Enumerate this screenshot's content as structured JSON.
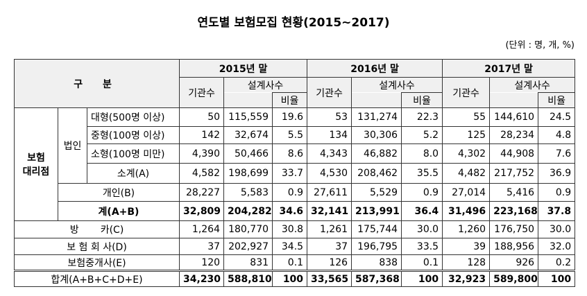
{
  "title": "연도별 보험모집 현황(2015~2017)",
  "unit": "(단위 : 명, 개, %)",
  "table": {
    "header": {
      "category": "구 분",
      "years": [
        {
          "year": "2015년 말",
          "institutions": "기관수",
          "planners": "설계사수",
          "ratio": "비율"
        },
        {
          "year": "2016년 말",
          "institutions": "기관수",
          "planners": "설계사수",
          "ratio": "비율"
        },
        {
          "year": "2017년 말",
          "institutions": "기관수",
          "planners": "설계사수",
          "ratio": "비율"
        }
      ]
    },
    "group_label": [
      "보험",
      "대리점"
    ],
    "corporate_label": "법인",
    "rows": [
      {
        "label": "대형(500명 이상)",
        "values": [
          "50",
          "115,559",
          "19.6",
          "53",
          "131,274",
          "22.3",
          "55",
          "144,610",
          "24.5"
        ]
      },
      {
        "label": "중형(100명 이상)",
        "values": [
          "142",
          "32,674",
          "5.5",
          "134",
          "30,306",
          "5.2",
          "125",
          "28,234",
          "4.8"
        ]
      },
      {
        "label": "소형(100명 미만)",
        "values": [
          "4,390",
          "50,466",
          "8.6",
          "4,343",
          "46,882",
          "8.0",
          "4,302",
          "44,908",
          "7.6"
        ]
      },
      {
        "label": "소계(A)",
        "values": [
          "4,582",
          "198,699",
          "33.7",
          "4,530",
          "208,462",
          "35.5",
          "4,482",
          "217,752",
          "36.9"
        ]
      },
      {
        "label": "개인(B)",
        "values": [
          "28,227",
          "5,583",
          "0.9",
          "27,611",
          "5,529",
          "0.9",
          "27,014",
          "5,416",
          "0.9"
        ]
      },
      {
        "label": "계(A+B)",
        "values": [
          "32,809",
          "204,282",
          "34.6",
          "32,141",
          "213,991",
          "36.4",
          "31,496",
          "223,168",
          "37.8"
        ]
      },
      {
        "label": "방       카(C)",
        "values": [
          "1,264",
          "180,770",
          "30.8",
          "1,261",
          "175,744",
          "30.0",
          "1,260",
          "176,750",
          "30.0"
        ]
      },
      {
        "label": "보 험 회 사(D)",
        "values": [
          "37",
          "202,927",
          "34.5",
          "37",
          "196,795",
          "33.5",
          "39",
          "188,956",
          "32.0"
        ]
      },
      {
        "label": "보험중개사(E)",
        "values": [
          "120",
          "831",
          "0.1",
          "126",
          "838",
          "0.1",
          "128",
          "926",
          "0.2"
        ]
      },
      {
        "label": "합계(A+B+C+D+E)",
        "values": [
          "34,230",
          "588,810",
          "100",
          "33,565",
          "587,368",
          "100",
          "32,923",
          "589,800",
          "100"
        ]
      }
    ]
  }
}
